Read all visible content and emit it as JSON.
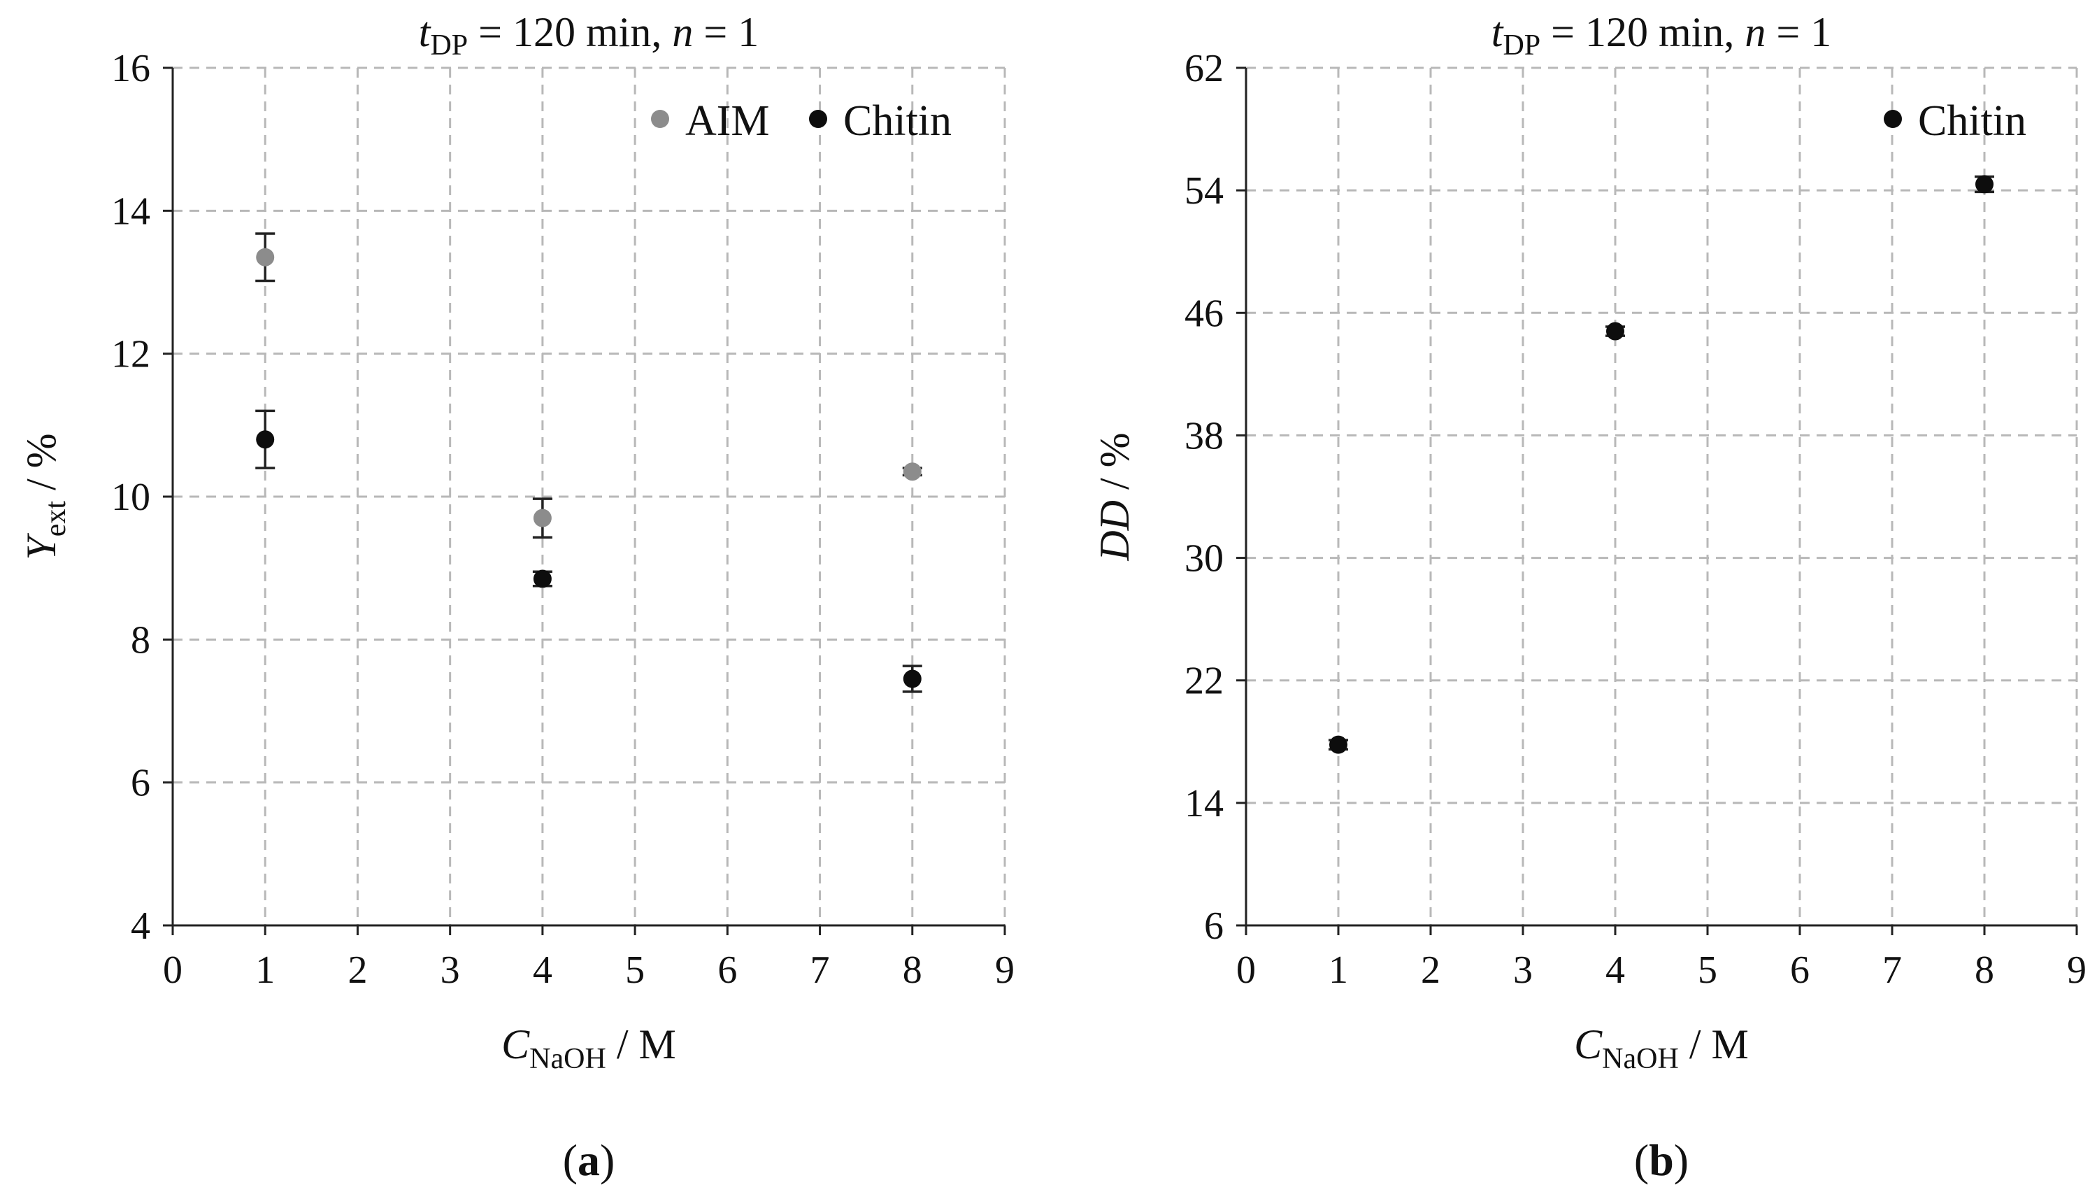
{
  "chart_data": [
    {
      "type": "scatter",
      "panel_label": "a",
      "title": {
        "var": "t",
        "sub": "DP",
        "rest": " = 120 min, ",
        "var2": "n",
        "rest2": " = 1"
      },
      "xlabel": {
        "var": "C",
        "sub": "NaOH",
        "unit": " / M"
      },
      "ylabel": {
        "var": "Y",
        "sub": "ext",
        "unit": " / %"
      },
      "xlim": [
        0,
        9
      ],
      "ylim": [
        4,
        16
      ],
      "xticks": [
        "0",
        "1",
        "2",
        "3",
        "4",
        "5",
        "6",
        "7",
        "8",
        "9"
      ],
      "yticks": [
        "4",
        "6",
        "8",
        "10",
        "12",
        "14",
        "16"
      ],
      "grid": true,
      "legend_position": "top-right",
      "series": [
        {
          "name": "AIM",
          "color": "#8c8c8c",
          "x": [
            1,
            4,
            8
          ],
          "y": [
            13.35,
            9.7,
            10.35
          ],
          "err": [
            0.33,
            0.27,
            0.05
          ]
        },
        {
          "name": "Chitin",
          "color": "#0d0d0d",
          "x": [
            1,
            4,
            8
          ],
          "y": [
            10.8,
            8.85,
            7.45
          ],
          "err": [
            0.4,
            0.1,
            0.18
          ]
        }
      ]
    },
    {
      "type": "scatter",
      "panel_label": "b",
      "title": {
        "var": "t",
        "sub": "DP",
        "rest": " = 120 min, ",
        "var2": "n",
        "rest2": " = 1"
      },
      "xlabel": {
        "var": "C",
        "sub": "NaOH",
        "unit": " / M"
      },
      "ylabel": {
        "var": "DD",
        "sub": "",
        "unit": " / %"
      },
      "xlim": [
        0,
        9
      ],
      "ylim": [
        6,
        62
      ],
      "xticks": [
        "0",
        "1",
        "2",
        "3",
        "4",
        "5",
        "6",
        "7",
        "8",
        "9"
      ],
      "yticks": [
        "6",
        "14",
        "22",
        "30",
        "38",
        "46",
        "54",
        "62"
      ],
      "grid": true,
      "legend_position": "top-right",
      "series": [
        {
          "name": "Chitin",
          "color": "#0d0d0d",
          "x": [
            1,
            4,
            8
          ],
          "y": [
            17.8,
            44.8,
            54.4
          ],
          "err": [
            0.3,
            0.3,
            0.5
          ]
        }
      ]
    }
  ]
}
